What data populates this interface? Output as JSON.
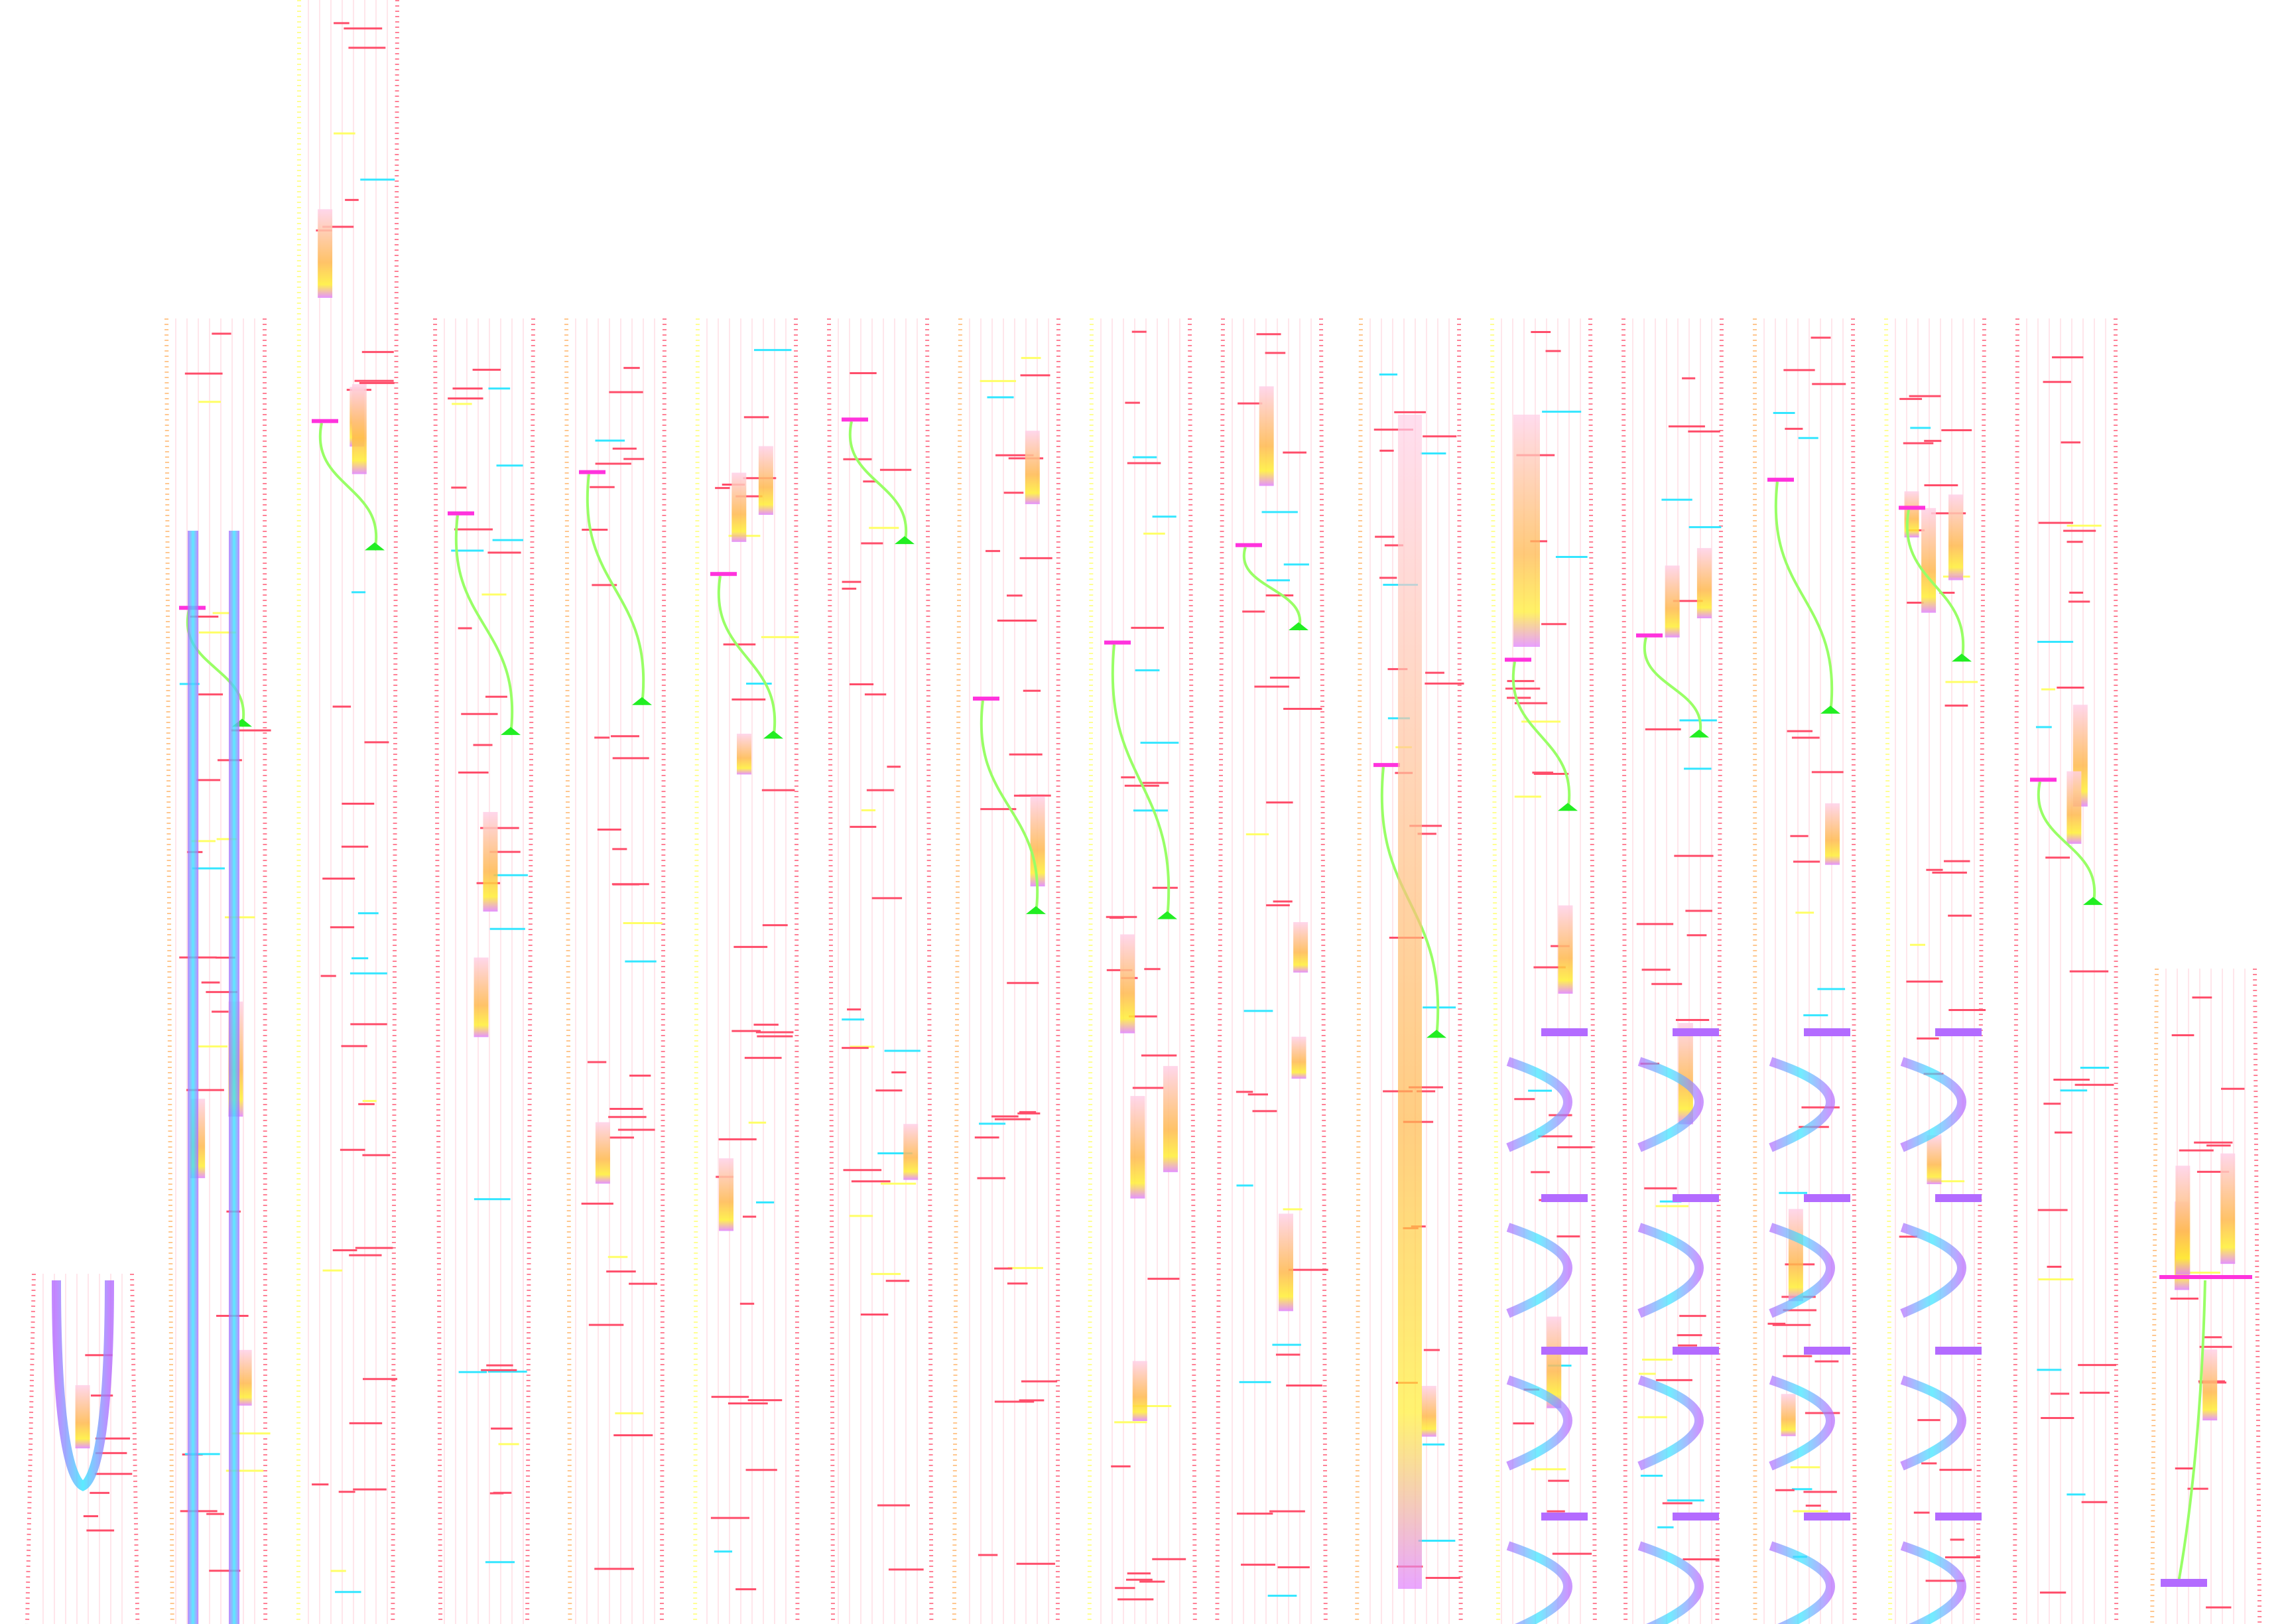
{
  "colors": {
    "background": "#ffffff",
    "stripe": "#ffd6de",
    "dash_red": "#ff4d6a",
    "dash_orange": "#ffb060",
    "dash_yellow": "#ffff66",
    "cyan": "#33e6ff",
    "violet": "#b36bff",
    "magenta": "#ff33dd",
    "green": "#22ee22",
    "light_green": "#99ff66",
    "bar_orange": "#ffb84d",
    "bar_yellow": "#ffee33",
    "bar_pink": "#ff99cc",
    "bar_lavender": "#d9b3ff"
  }
}
